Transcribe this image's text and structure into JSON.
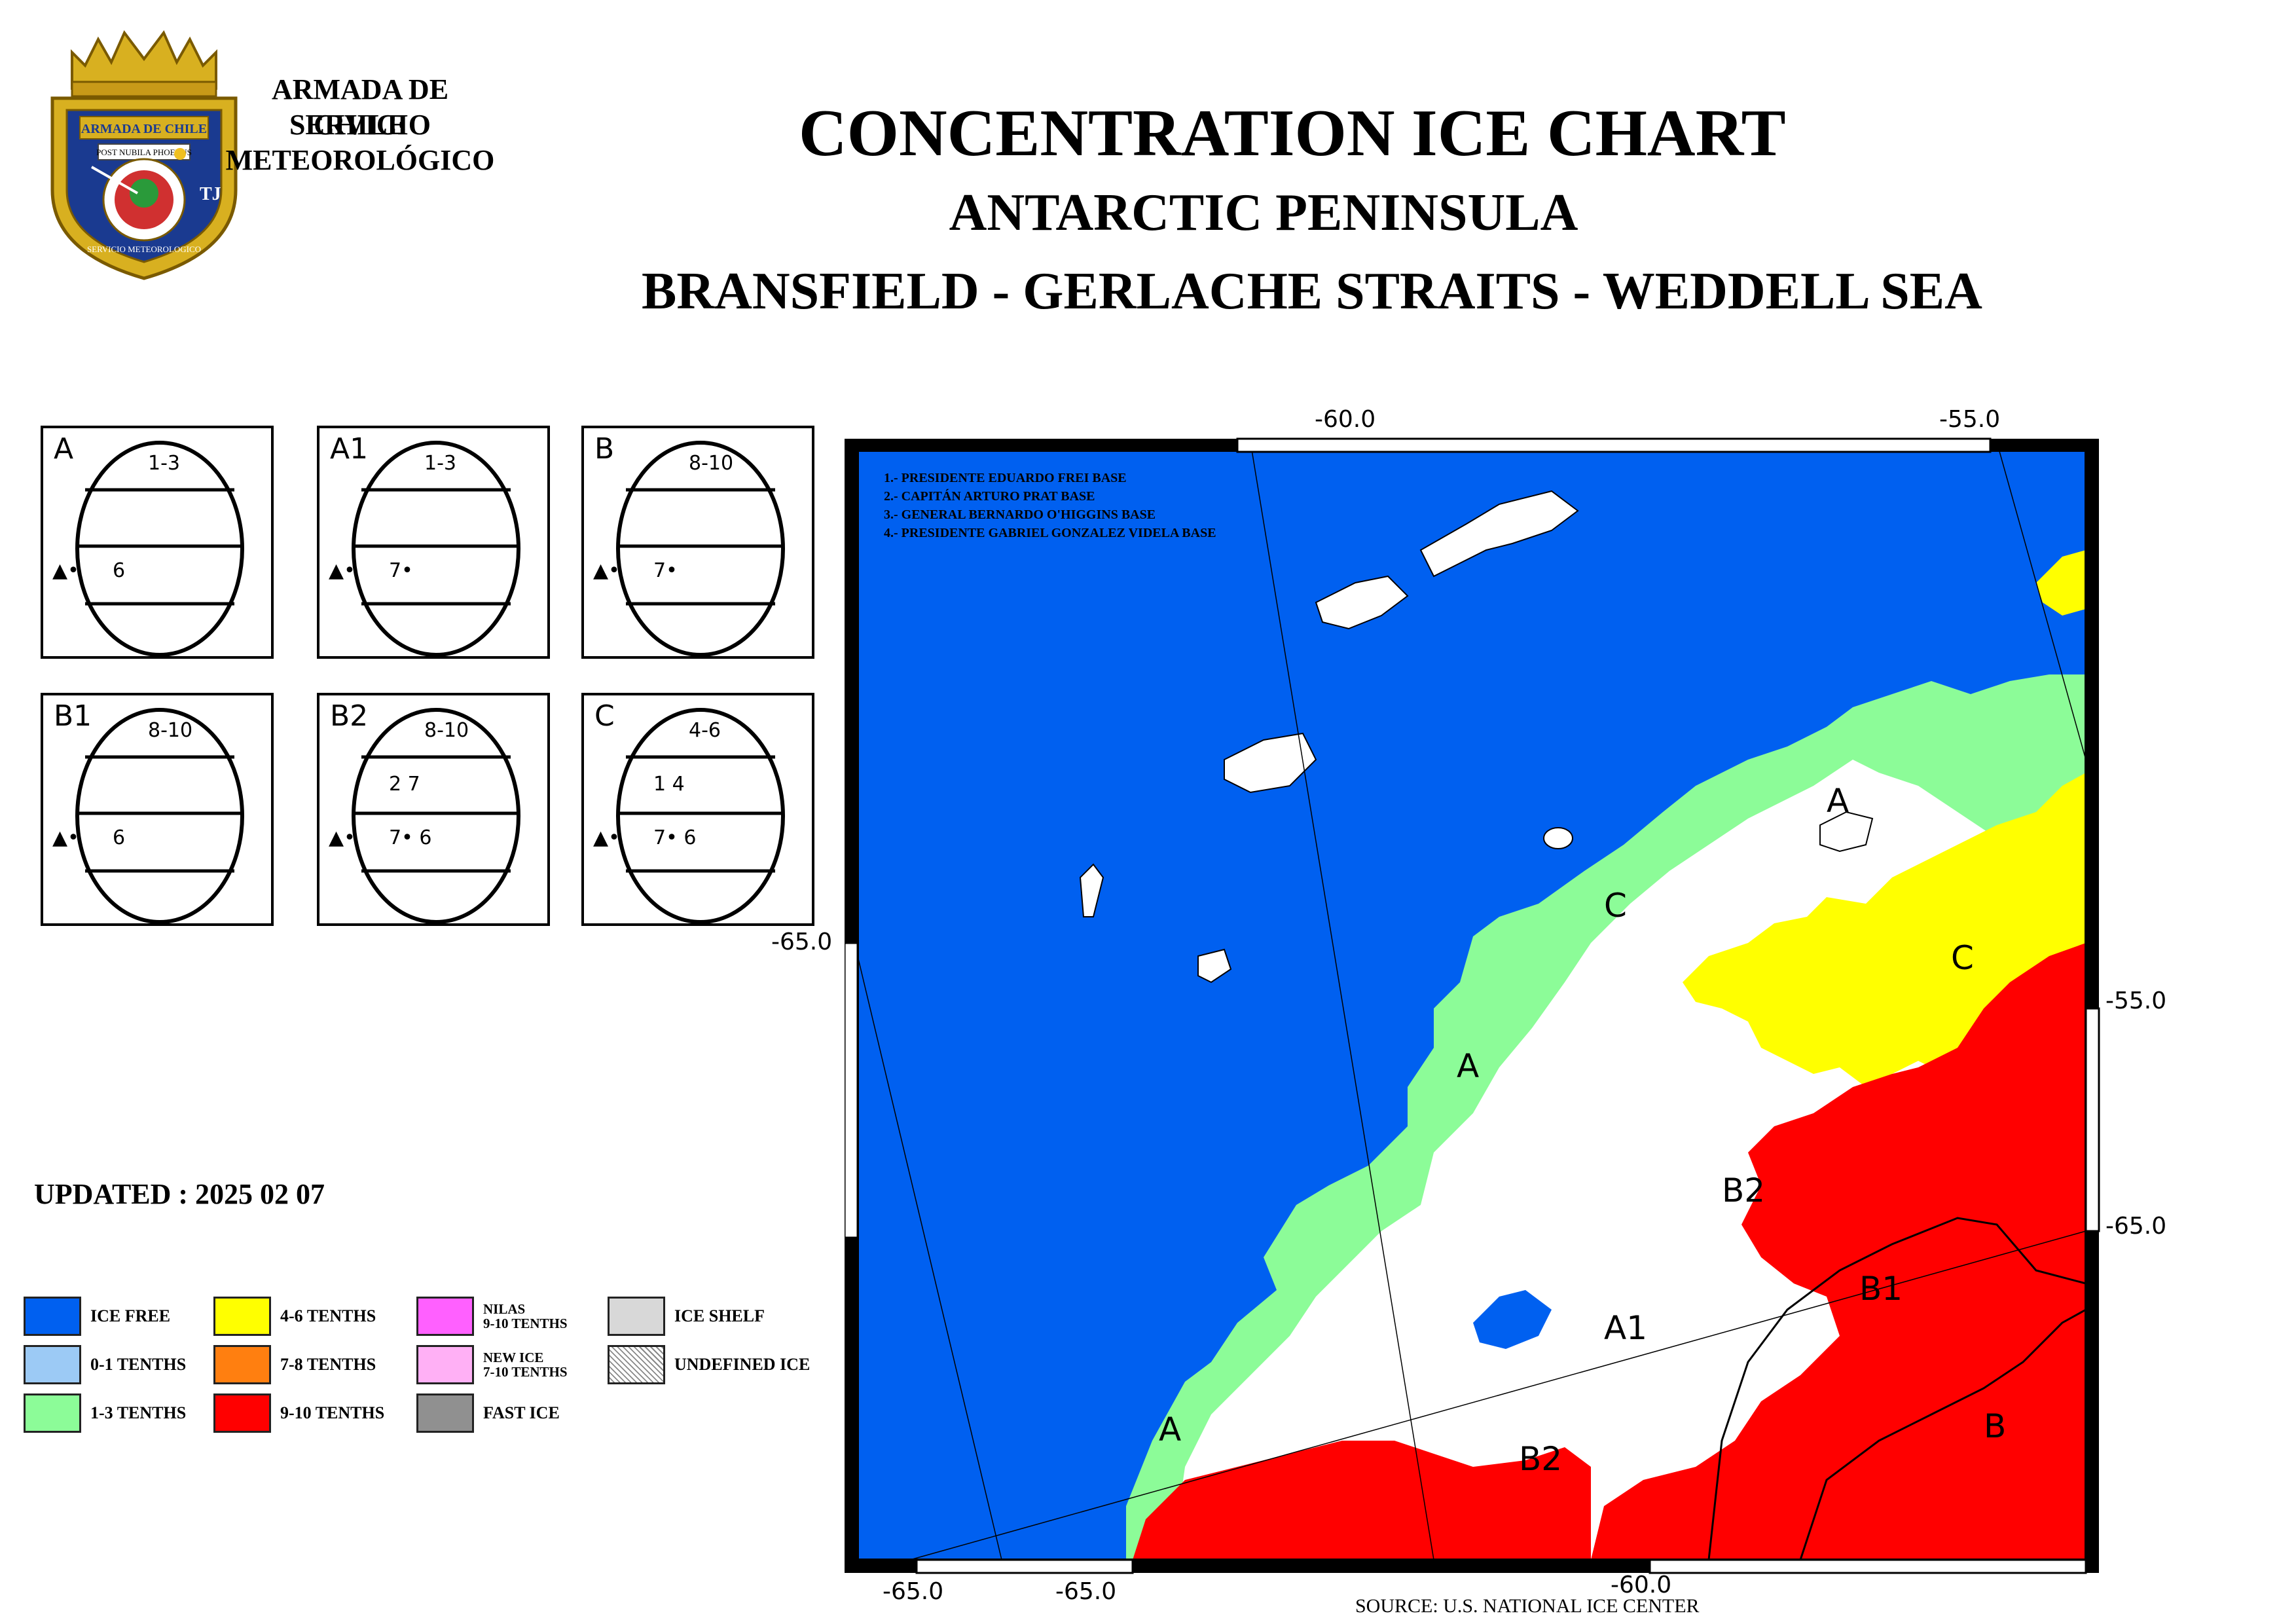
{
  "header": {
    "org_line1": "ARMADA DE CHILE",
    "org_line2": "SERVICIO METEOROLÓGICO",
    "title": "CONCENTRATION ICE CHART",
    "subtitle": "ANTARCTIC PENINSULA",
    "region": "BRANSFIELD - GERLACHE  STRAITS - WEDDELL SEA"
  },
  "logo": {
    "banner_text": "ARMADA DE CHILE",
    "motto": "POST NUBILA PHOEBUS",
    "ring_text": "SERVICIO METEOROLOGICO"
  },
  "egg_codes": [
    {
      "code": "A",
      "total": "1-3",
      "row2": "",
      "stage": "6",
      "marker": "▲•"
    },
    {
      "code": "A1",
      "total": "1-3",
      "row2": "",
      "stage": "7•",
      "marker": "▲•"
    },
    {
      "code": "B",
      "total": "8-10",
      "row2": "",
      "stage": "7•",
      "marker": "▲•"
    },
    {
      "code": "B1",
      "total": "8-10",
      "row2": "",
      "stage": "6",
      "marker": "▲•"
    },
    {
      "code": "B2",
      "total": "8-10",
      "row2": "2  7",
      "stage": "7•  6",
      "marker": "▲•"
    },
    {
      "code": "C",
      "total": "4-6",
      "row2": "1  4",
      "stage": "7•  6",
      "marker": "▲•"
    }
  ],
  "updated": "UPDATED : 2025 02 07",
  "legend": [
    {
      "label": "ICE FREE",
      "color": "#0060f0"
    },
    {
      "label": "0-1 TENTHS",
      "color": "#9ccaf5"
    },
    {
      "label": "1-3 TENTHS",
      "color": "#8cfc98"
    },
    {
      "label": "4-6 TENTHS",
      "color": "#ffff00"
    },
    {
      "label": "7-8 TENTHS",
      "color": "#ff7f10"
    },
    {
      "label": "9-10 TENTHS",
      "color": "#ff0000"
    },
    {
      "label": "NILAS\n9-10 TENTHS",
      "color": "#ff60ff"
    },
    {
      "label": "NEW ICE\n7-10 TENTHS",
      "color": "#ffb0f5"
    },
    {
      "label": "FAST ICE",
      "color": "#909090"
    },
    {
      "label": "ICE SHELF",
      "color": "#d8d8d8"
    },
    {
      "label": "UNDEFINED ICE",
      "color": "hatched"
    }
  ],
  "map": {
    "bases": [
      "1.- PRESIDENTE EDUARDO FREI BASE",
      "2.- CAPITÁN ARTURO PRAT   BASE",
      "3.- GENERAL BERNARDO O'HIGGINS BASE",
      "4.- PRESIDENTE GABRIEL GONZALEZ VIDELA BASE"
    ],
    "ticks": {
      "top_1": "-60.0",
      "top_2": "-55.0",
      "left_1": "-65.0",
      "right_1": "-55.0",
      "right_2": "-65.0",
      "bottom_1": "-65.0",
      "bottom_2": "-65.0",
      "bottom_3": "-60.0"
    },
    "area_labels": {
      "a1": "A",
      "a2": "A",
      "a3": "A",
      "a_small": "A1",
      "b2_1": "B2",
      "b2_2": "B2",
      "b1": "B1",
      "b": "B",
      "c1": "C",
      "c2": "C"
    },
    "colors": {
      "ice_free": "#0060f0",
      "one_three": "#8cfc98",
      "four_six": "#ffff00",
      "nine_ten": "#ff0000",
      "land": "#ffffff"
    }
  },
  "source": "SOURCE: U.S. NATIONAL ICE CENTER"
}
